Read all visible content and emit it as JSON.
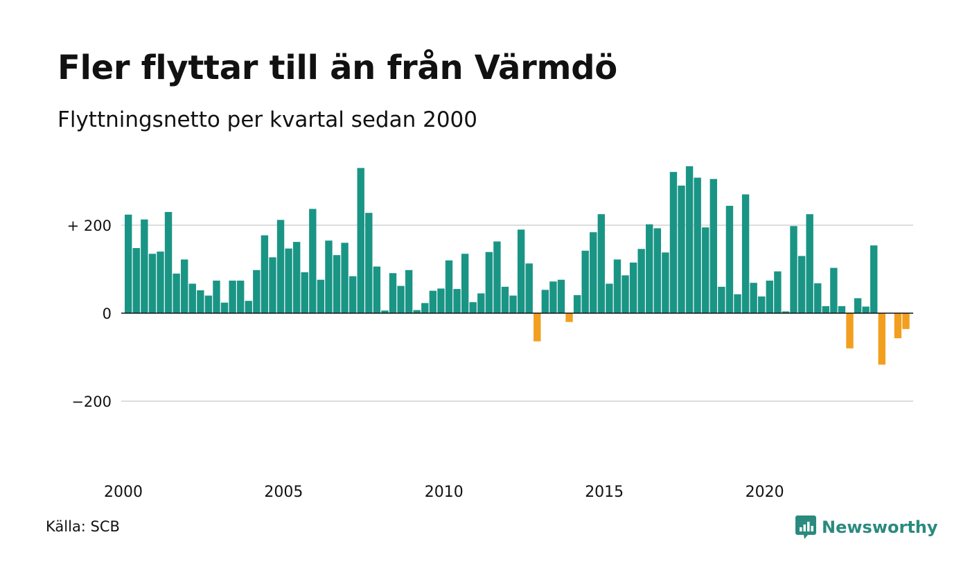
{
  "title": "Fler flyttar till än från Värmdö",
  "subtitle": "Flyttningsnetto per kvartal sedan 2000",
  "source": "Källa: SCB",
  "brand": "Newsworthy",
  "colors": {
    "positive": "#1a9585",
    "negative": "#f29e1f",
    "grid": "#dddddd",
    "axis": "#111111",
    "brand": "#2b8a7e"
  },
  "chart_data": {
    "type": "bar",
    "title": "Fler flyttar till än från Värmdö",
    "subtitle": "Flyttningsnetto per kvartal sedan 2000",
    "ylim": [
      -400,
      350
    ],
    "yticks": [
      {
        "value": 200,
        "label": "+ 200"
      },
      {
        "value": 0,
        "label": "0"
      },
      {
        "value": -200,
        "label": "−200"
      }
    ],
    "xticks": [
      "2000",
      "2005",
      "2010",
      "2015",
      "2020"
    ],
    "start_year": 2000,
    "grid": true,
    "values": [
      224,
      148,
      213,
      135,
      140,
      230,
      90,
      122,
      67,
      52,
      40,
      74,
      24,
      74,
      74,
      28,
      98,
      177,
      127,
      212,
      147,
      162,
      93,
      237,
      76,
      165,
      132,
      160,
      84,
      330,
      228,
      106,
      6,
      91,
      62,
      98,
      7,
      23,
      51,
      56,
      120,
      55,
      135,
      25,
      45,
      139,
      163,
      60,
      40,
      190,
      113,
      -64,
      53,
      72,
      76,
      -20,
      41,
      142,
      184,
      225,
      67,
      122,
      86,
      115,
      146,
      202,
      193,
      138,
      321,
      290,
      334,
      308,
      195,
      305,
      60,
      244,
      43,
      270,
      69,
      38,
      74,
      95,
      4,
      198,
      130,
      225,
      68,
      16,
      103,
      16,
      -80,
      34,
      15,
      154,
      -117,
      0,
      -57,
      -36
    ]
  }
}
